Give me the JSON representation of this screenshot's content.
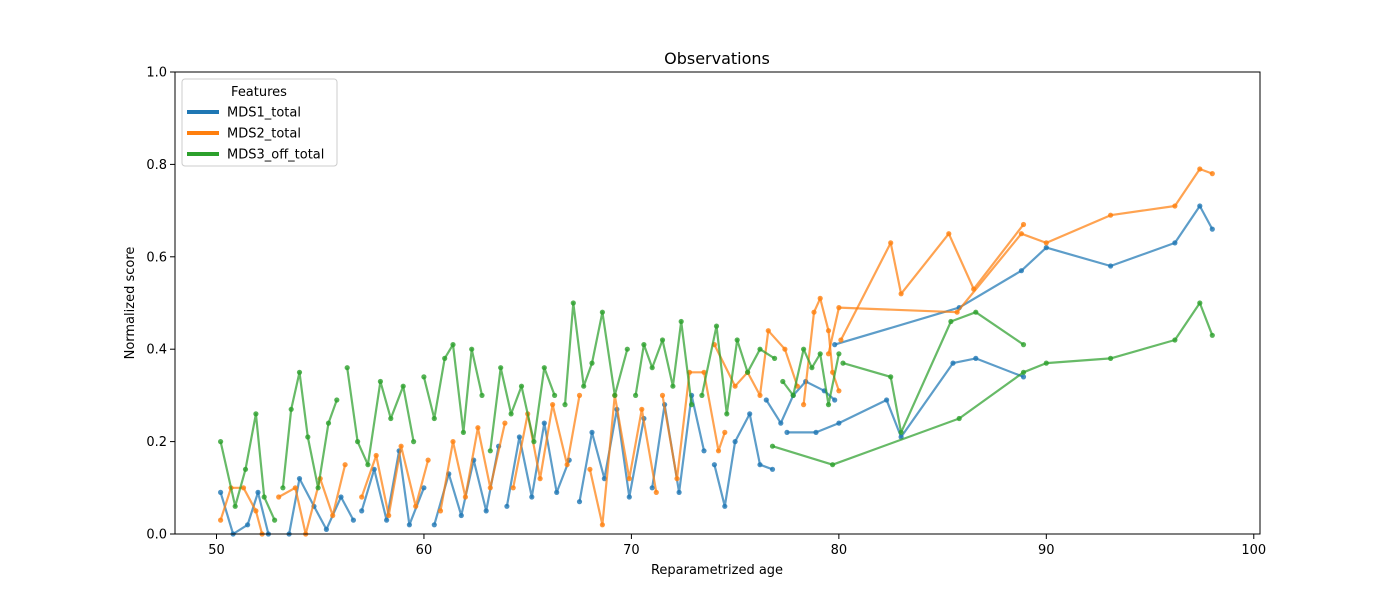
{
  "chart_data": {
    "type": "line",
    "title": "Observations",
    "xlabel": "Reparametrized age",
    "ylabel": "Normalized score",
    "xlim": [
      48,
      100.3
    ],
    "ylim": [
      0,
      1.0
    ],
    "xticks": [
      "50",
      "60",
      "70",
      "80",
      "90",
      "100"
    ],
    "yticks": [
      "0.0",
      "0.2",
      "0.4",
      "0.6",
      "0.8",
      "1.0"
    ],
    "grid": false,
    "legend": {
      "title": "Features",
      "placement": "top-left"
    },
    "series": [
      {
        "name": "MDS1_total",
        "color": "#1f77b4",
        "lines": [
          [
            [
              50.2,
              0.09
            ],
            [
              50.8,
              0.0
            ],
            [
              51.5,
              0.02
            ],
            [
              52.0,
              0.09
            ],
            [
              52.5,
              0.0
            ]
          ],
          [
            [
              53.5,
              0.0
            ],
            [
              54.0,
              0.12
            ],
            [
              54.7,
              0.06
            ],
            [
              55.3,
              0.01
            ],
            [
              56.0,
              0.08
            ],
            [
              56.6,
              0.03
            ]
          ],
          [
            [
              57.0,
              0.05
            ],
            [
              57.6,
              0.14
            ],
            [
              58.2,
              0.03
            ],
            [
              58.8,
              0.18
            ],
            [
              59.3,
              0.02
            ],
            [
              60.0,
              0.1
            ]
          ],
          [
            [
              60.5,
              0.02
            ],
            [
              61.2,
              0.13
            ],
            [
              61.8,
              0.04
            ],
            [
              62.4,
              0.16
            ],
            [
              63.0,
              0.05
            ],
            [
              63.6,
              0.19
            ]
          ],
          [
            [
              64.0,
              0.06
            ],
            [
              64.6,
              0.21
            ],
            [
              65.2,
              0.08
            ],
            [
              65.8,
              0.24
            ],
            [
              66.4,
              0.09
            ],
            [
              67.0,
              0.16
            ]
          ],
          [
            [
              67.5,
              0.07
            ],
            [
              68.1,
              0.22
            ],
            [
              68.7,
              0.12
            ],
            [
              69.3,
              0.27
            ],
            [
              69.9,
              0.08
            ],
            [
              70.6,
              0.25
            ]
          ],
          [
            [
              71.0,
              0.1
            ],
            [
              71.6,
              0.28
            ],
            [
              72.3,
              0.09
            ],
            [
              72.9,
              0.3
            ],
            [
              73.5,
              0.18
            ]
          ],
          [
            [
              74.0,
              0.15
            ],
            [
              74.5,
              0.06
            ],
            [
              75.0,
              0.2
            ],
            [
              75.7,
              0.26
            ],
            [
              76.2,
              0.15
            ],
            [
              76.8,
              0.14
            ]
          ],
          [
            [
              76.5,
              0.29
            ],
            [
              77.2,
              0.24
            ],
            [
              77.8,
              0.3
            ],
            [
              78.4,
              0.33
            ],
            [
              79.3,
              0.31
            ],
            [
              79.8,
              0.29
            ]
          ],
          [
            [
              79.8,
              0.41
            ],
            [
              85.8,
              0.49
            ],
            [
              88.8,
              0.57
            ],
            [
              90.0,
              0.62
            ],
            [
              93.1,
              0.58
            ],
            [
              96.2,
              0.63
            ],
            [
              97.4,
              0.71
            ],
            [
              98.0,
              0.66
            ]
          ],
          [
            [
              77.5,
              0.22
            ],
            [
              78.9,
              0.22
            ],
            [
              80.0,
              0.24
            ],
            [
              82.3,
              0.29
            ],
            [
              83.0,
              0.21
            ],
            [
              85.5,
              0.37
            ],
            [
              86.6,
              0.38
            ],
            [
              88.9,
              0.34
            ]
          ]
        ]
      },
      {
        "name": "MDS2_total",
        "color": "#ff7f0e",
        "lines": [
          [
            [
              50.2,
              0.03
            ],
            [
              50.7,
              0.1
            ],
            [
              51.3,
              0.1
            ],
            [
              51.9,
              0.05
            ],
            [
              52.2,
              0.0
            ]
          ],
          [
            [
              53.0,
              0.08
            ],
            [
              53.8,
              0.1
            ],
            [
              54.3,
              0.0
            ],
            [
              55.0,
              0.12
            ],
            [
              55.6,
              0.04
            ],
            [
              56.2,
              0.15
            ]
          ],
          [
            [
              57.0,
              0.08
            ],
            [
              57.7,
              0.17
            ],
            [
              58.3,
              0.04
            ],
            [
              58.9,
              0.19
            ],
            [
              59.6,
              0.06
            ],
            [
              60.2,
              0.16
            ]
          ],
          [
            [
              60.8,
              0.05
            ],
            [
              61.4,
              0.2
            ],
            [
              62.0,
              0.08
            ],
            [
              62.6,
              0.23
            ],
            [
              63.2,
              0.1
            ],
            [
              63.9,
              0.24
            ]
          ],
          [
            [
              64.3,
              0.1
            ],
            [
              65.0,
              0.26
            ],
            [
              65.6,
              0.12
            ],
            [
              66.2,
              0.28
            ],
            [
              66.9,
              0.15
            ],
            [
              67.5,
              0.3
            ]
          ],
          [
            [
              68.0,
              0.14
            ],
            [
              68.6,
              0.02
            ],
            [
              69.2,
              0.3
            ],
            [
              69.9,
              0.12
            ],
            [
              70.5,
              0.27
            ],
            [
              71.2,
              0.09
            ]
          ],
          [
            [
              71.5,
              0.3
            ],
            [
              72.2,
              0.12
            ],
            [
              72.8,
              0.35
            ],
            [
              73.5,
              0.35
            ],
            [
              74.2,
              0.18
            ],
            [
              74.5,
              0.22
            ]
          ],
          [
            [
              74.0,
              0.41
            ],
            [
              75.0,
              0.32
            ],
            [
              75.6,
              0.35
            ],
            [
              76.2,
              0.3
            ],
            [
              76.6,
              0.44
            ],
            [
              77.4,
              0.4
            ],
            [
              78.0,
              0.32
            ]
          ],
          [
            [
              78.3,
              0.28
            ],
            [
              78.8,
              0.48
            ],
            [
              79.1,
              0.51
            ],
            [
              79.5,
              0.44
            ],
            [
              79.7,
              0.35
            ],
            [
              80.0,
              0.31
            ]
          ],
          [
            [
              79.5,
              0.39
            ],
            [
              80.0,
              0.49
            ],
            [
              85.7,
              0.48
            ],
            [
              88.8,
              0.65
            ],
            [
              90.0,
              0.63
            ],
            [
              93.1,
              0.69
            ],
            [
              96.2,
              0.71
            ],
            [
              97.4,
              0.79
            ],
            [
              98.0,
              0.78
            ]
          ],
          [
            [
              80.1,
              0.42
            ],
            [
              82.5,
              0.63
            ],
            [
              83.0,
              0.52
            ],
            [
              85.3,
              0.65
            ],
            [
              86.5,
              0.53
            ],
            [
              88.9,
              0.67
            ]
          ]
        ]
      },
      {
        "name": "MDS3_off_total",
        "color": "#2ca02c",
        "lines": [
          [
            [
              50.2,
              0.2
            ],
            [
              50.9,
              0.06
            ],
            [
              51.4,
              0.14
            ],
            [
              51.9,
              0.26
            ],
            [
              52.3,
              0.08
            ],
            [
              52.8,
              0.03
            ]
          ],
          [
            [
              53.2,
              0.1
            ],
            [
              53.6,
              0.27
            ],
            [
              54.0,
              0.35
            ],
            [
              54.4,
              0.21
            ],
            [
              54.9,
              0.1
            ],
            [
              55.4,
              0.24
            ],
            [
              55.8,
              0.29
            ]
          ],
          [
            [
              56.3,
              0.36
            ],
            [
              56.8,
              0.2
            ],
            [
              57.3,
              0.15
            ],
            [
              57.9,
              0.33
            ],
            [
              58.4,
              0.25
            ],
            [
              59.0,
              0.32
            ],
            [
              59.5,
              0.2
            ]
          ],
          [
            [
              60.0,
              0.34
            ],
            [
              60.5,
              0.25
            ],
            [
              61.0,
              0.38
            ],
            [
              61.4,
              0.41
            ],
            [
              61.9,
              0.22
            ],
            [
              62.3,
              0.4
            ],
            [
              62.8,
              0.3
            ]
          ],
          [
            [
              63.2,
              0.18
            ],
            [
              63.7,
              0.36
            ],
            [
              64.2,
              0.26
            ],
            [
              64.7,
              0.32
            ],
            [
              65.3,
              0.2
            ],
            [
              65.8,
              0.36
            ],
            [
              66.3,
              0.3
            ]
          ],
          [
            [
              66.8,
              0.28
            ],
            [
              67.2,
              0.5
            ],
            [
              67.7,
              0.32
            ],
            [
              68.1,
              0.37
            ],
            [
              68.6,
              0.48
            ],
            [
              69.2,
              0.3
            ],
            [
              69.8,
              0.4
            ]
          ],
          [
            [
              70.2,
              0.3
            ],
            [
              70.6,
              0.41
            ],
            [
              71.0,
              0.36
            ],
            [
              71.5,
              0.42
            ],
            [
              72.0,
              0.32
            ],
            [
              72.4,
              0.46
            ],
            [
              72.9,
              0.28
            ]
          ],
          [
            [
              73.4,
              0.3
            ],
            [
              74.1,
              0.45
            ],
            [
              74.6,
              0.26
            ],
            [
              75.1,
              0.42
            ],
            [
              75.6,
              0.35
            ],
            [
              76.2,
              0.4
            ],
            [
              76.9,
              0.38
            ]
          ],
          [
            [
              77.3,
              0.33
            ],
            [
              77.8,
              0.3
            ],
            [
              78.3,
              0.4
            ],
            [
              78.7,
              0.36
            ],
            [
              79.1,
              0.39
            ],
            [
              79.5,
              0.28
            ],
            [
              80.0,
              0.39
            ]
          ],
          [
            [
              76.8,
              0.19
            ],
            [
              79.7,
              0.15
            ],
            [
              85.8,
              0.25
            ],
            [
              88.9,
              0.35
            ],
            [
              90.0,
              0.37
            ],
            [
              93.1,
              0.38
            ],
            [
              96.2,
              0.42
            ],
            [
              97.4,
              0.5
            ],
            [
              98.0,
              0.43
            ]
          ],
          [
            [
              80.2,
              0.37
            ],
            [
              82.5,
              0.34
            ],
            [
              83.0,
              0.22
            ],
            [
              85.4,
              0.46
            ],
            [
              86.6,
              0.48
            ],
            [
              88.9,
              0.41
            ]
          ]
        ]
      }
    ]
  }
}
